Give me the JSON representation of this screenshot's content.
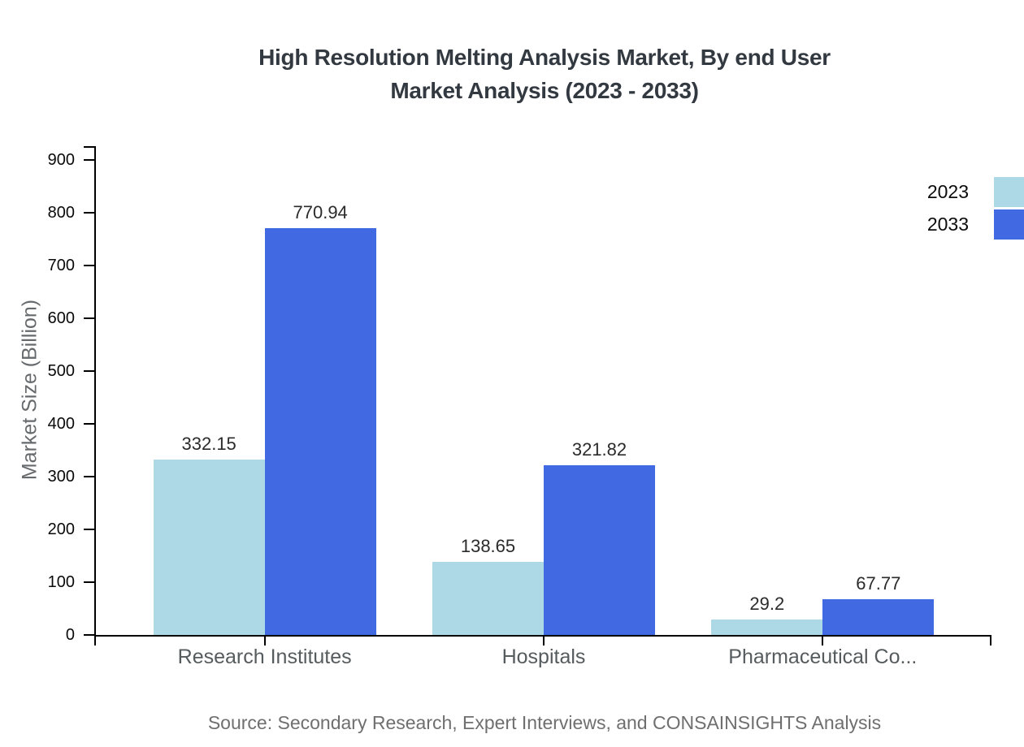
{
  "title": {
    "line1": "High Resolution Melting Analysis Market, By end User",
    "line2": "Market Analysis (2023 - 2033)"
  },
  "source": "Source: Secondary Research, Expert Interviews, and CONSAINSIGHTS Analysis",
  "chart_data": {
    "type": "bar",
    "title": "High Resolution Melting Analysis Market, By end User Market Analysis (2023 - 2033)",
    "categories": [
      "Research Institutes",
      "Hospitals",
      "Pharmaceutical Co..."
    ],
    "series": [
      {
        "name": "2023",
        "color": "#ADD8E6",
        "values": [
          332.15,
          138.65,
          29.2
        ]
      },
      {
        "name": "2033",
        "color": "#4169E1",
        "values": [
          770.94,
          321.82,
          67.77
        ]
      }
    ],
    "xlabel": "",
    "ylabel": "Market Size (Billion)",
    "ylim": [
      0,
      900
    ],
    "ytick_step": 100,
    "ytick_labels": [
      "0",
      "100",
      "200",
      "300",
      "400",
      "500",
      "600",
      "700",
      "800",
      "900"
    ],
    "grid": false,
    "legend_position": "top-right",
    "value_labels_shown": true
  }
}
